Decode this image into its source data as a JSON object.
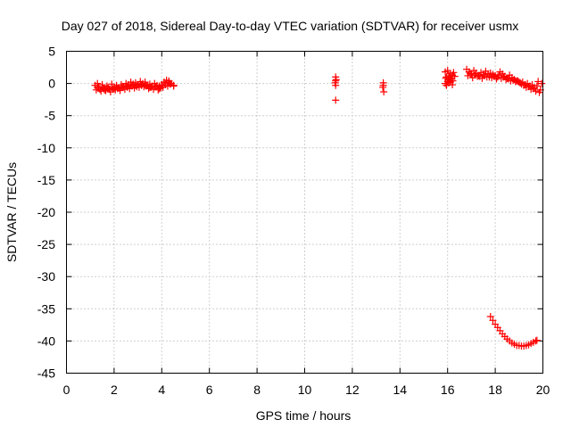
{
  "chart_data": {
    "type": "scatter",
    "title": "Day 027 of 2018, Sidereal Day-to-day VTEC variation (SDTVAR) for receiver usmx",
    "xlabel": "GPS time / hours",
    "ylabel": "SDTVAR / TECUs",
    "xlim": [
      0,
      20
    ],
    "ylim": [
      -45,
      5
    ],
    "xticks": [
      "0",
      "2",
      "4",
      "6",
      "8",
      "10",
      "12",
      "14",
      "16",
      "18",
      "20"
    ],
    "yticks": [
      "5",
      "0",
      "-5",
      "-10",
      "-15",
      "-20",
      "-25",
      "-30",
      "-35",
      "-40",
      "-45"
    ],
    "grid": true,
    "marker": "plus",
    "color": "#ff0000",
    "series": [
      {
        "x": [
          1.2,
          1.3,
          1.4,
          1.5,
          1.6,
          1.7,
          1.8,
          1.9,
          2.0,
          2.1,
          2.2,
          2.3,
          2.4,
          2.5,
          2.6,
          2.7,
          2.8,
          2.9,
          3.0,
          3.1,
          3.2,
          3.3,
          3.4,
          3.5,
          3.6,
          3.7,
          3.8,
          3.9,
          4.0,
          4.1,
          4.2,
          4.3,
          4.4,
          4.5,
          1.25,
          1.45,
          1.65,
          1.85,
          2.05,
          2.25,
          2.45,
          2.65,
          2.85,
          3.05,
          3.25,
          3.45,
          3.65,
          3.85,
          4.05,
          4.25,
          1.3,
          1.5,
          1.7,
          1.9,
          2.1,
          2.3,
          2.5,
          2.7,
          2.9,
          3.1,
          3.3,
          3.5,
          3.7,
          3.9,
          4.1,
          4.3,
          1.35,
          1.55,
          1.75,
          1.95,
          2.15,
          2.35,
          2.55,
          2.75,
          2.95,
          3.15,
          3.35,
          3.55,
          3.75,
          3.95,
          4.15,
          4.35,
          4.5,
          11.3,
          11.3,
          11.3,
          11.32,
          11.28,
          11.3,
          13.3,
          13.3,
          13.32,
          13.28,
          15.9,
          15.95,
          16.0,
          16.05,
          16.1,
          16.15,
          16.2,
          16.25,
          16.3,
          15.9,
          16.0,
          16.1,
          16.2,
          15.92,
          16.02,
          16.12,
          16.22,
          15.95,
          16.05,
          16.15,
          16.8,
          16.9,
          17.0,
          17.1,
          17.2,
          17.3,
          17.4,
          17.5,
          17.6,
          17.7,
          17.8,
          17.9,
          18.0,
          18.1,
          18.2,
          18.3,
          18.4,
          18.5,
          18.6,
          18.7,
          18.8,
          18.9,
          19.0,
          19.1,
          19.2,
          19.3,
          19.4,
          19.5,
          19.6,
          19.7,
          19.8,
          19.9,
          16.85,
          17.05,
          17.25,
          17.45,
          17.65,
          17.85,
          18.05,
          18.25,
          18.45,
          18.65,
          18.85,
          19.05,
          19.25,
          19.45,
          19.65,
          19.85,
          16.95,
          17.15,
          17.35,
          17.55,
          17.75,
          17.95,
          18.15,
          18.35,
          18.55,
          18.75,
          18.95,
          19.15,
          19.35,
          19.55,
          19.75,
          19.95,
          17.8,
          17.9,
          18.0,
          18.1,
          18.2,
          18.3,
          18.4,
          18.5,
          18.6,
          18.7,
          18.8,
          18.9,
          19.0,
          19.1,
          19.2,
          19.3,
          19.4,
          19.5,
          19.6,
          19.7,
          19.75
        ],
        "y": [
          -0.3,
          -0.6,
          -0.9,
          -0.5,
          -1.0,
          -0.7,
          -0.9,
          -0.6,
          -0.8,
          -0.5,
          -0.7,
          -0.6,
          -0.5,
          -0.4,
          -0.2,
          -0.3,
          -0.1,
          -0.3,
          -0.2,
          -0.1,
          0.0,
          -0.2,
          -0.3,
          -0.6,
          -0.4,
          -0.5,
          -0.3,
          -0.8,
          -0.2,
          0.2,
          0.5,
          0.2,
          0.0,
          -0.3,
          -1.0,
          -1.2,
          -1.1,
          -1.3,
          -1.0,
          -1.1,
          -0.9,
          -0.8,
          -0.7,
          -0.6,
          -0.5,
          -0.8,
          -0.9,
          -1.0,
          -0.6,
          -0.4,
          0.0,
          -0.2,
          -0.4,
          -0.1,
          -0.3,
          -0.2,
          0.0,
          0.2,
          0.1,
          0.3,
          0.2,
          -0.1,
          0.0,
          -0.4,
          0.1,
          0.4,
          -0.6,
          -0.8,
          -0.7,
          -0.9,
          -0.8,
          -0.5,
          -0.6,
          -0.4,
          -0.5,
          -0.3,
          -0.4,
          -0.6,
          -0.5,
          -0.7,
          -0.2,
          -0.1,
          -0.4,
          1.0,
          0.4,
          -0.3,
          0.6,
          0.1,
          -2.6,
          0.1,
          -0.3,
          -1.3,
          -0.6,
          1.8,
          1.0,
          2.0,
          1.2,
          1.5,
          0.8,
          1.3,
          1.7,
          1.1,
          0.0,
          0.3,
          0.5,
          -0.2,
          0.8,
          0.6,
          0.2,
          0.4,
          -0.3,
          0.1,
          0.7,
          2.2,
          1.8,
          1.5,
          2.0,
          1.6,
          1.2,
          1.7,
          1.4,
          1.9,
          1.5,
          1.6,
          1.4,
          1.2,
          1.0,
          1.8,
          1.5,
          1.1,
          0.8,
          1.3,
          0.9,
          0.6,
          0.4,
          0.2,
          -0.1,
          -0.3,
          -0.6,
          -0.5,
          -0.9,
          -0.8,
          -1.2,
          0.3,
          -1.0,
          1.2,
          0.9,
          1.1,
          0.8,
          1.0,
          0.9,
          0.7,
          0.8,
          0.6,
          0.4,
          0.3,
          0.1,
          -0.2,
          -0.4,
          -0.7,
          -1.4,
          1.5,
          1.3,
          1.1,
          1.2,
          1.0,
          1.1,
          1.3,
          1.0,
          0.7,
          0.5,
          0.4,
          0.2,
          0.0,
          -0.2,
          -0.4,
          0.0,
          -36.2,
          -36.8,
          -37.4,
          -37.9,
          -38.4,
          -38.9,
          -39.3,
          -39.7,
          -40.0,
          -40.3,
          -40.5,
          -40.7,
          -40.7,
          -40.8,
          -40.8,
          -40.7,
          -40.6,
          -40.4,
          -40.2,
          -40.0,
          -39.9
        ]
      }
    ]
  }
}
